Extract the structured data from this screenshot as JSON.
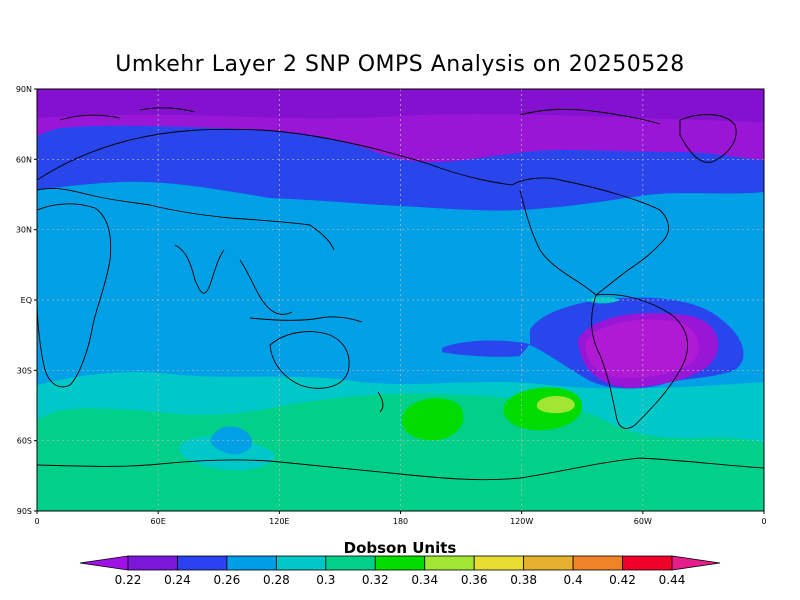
{
  "title": "Umkehr Layer 2 SNP OMPS Analysis on 20250528",
  "units": "Dobson Units",
  "lat_labels": [
    "90N",
    "60N",
    "30N",
    "EQ",
    "30S",
    "60S",
    "90S"
  ],
  "lon_labels": [
    "0",
    "60E",
    "120E",
    "180",
    "120W",
    "60W",
    "0"
  ],
  "colorbar": {
    "values": [
      "0.22",
      "0.24",
      "0.26",
      "0.28",
      "0.3",
      "0.32",
      "0.34",
      "0.36",
      "0.38",
      "0.4",
      "0.42",
      "0.44"
    ],
    "colors": [
      "#a010e8",
      "#7a17d8",
      "#2a42f0",
      "#009ee6",
      "#00c8c8",
      "#00d08a",
      "#00dc00",
      "#a0e632",
      "#e6dc32",
      "#e6af2d",
      "#f08228",
      "#f00028",
      "#e61e8c"
    ]
  },
  "map_colors": {
    "violet": "#9a16d6",
    "blue": "#2846ec",
    "lightblue": "#00a0e6",
    "cyan": "#00c8c8",
    "seagreen": "#00d08a",
    "green": "#00dc00",
    "lime": "#a0e632",
    "magenta": "#b01ad4"
  }
}
